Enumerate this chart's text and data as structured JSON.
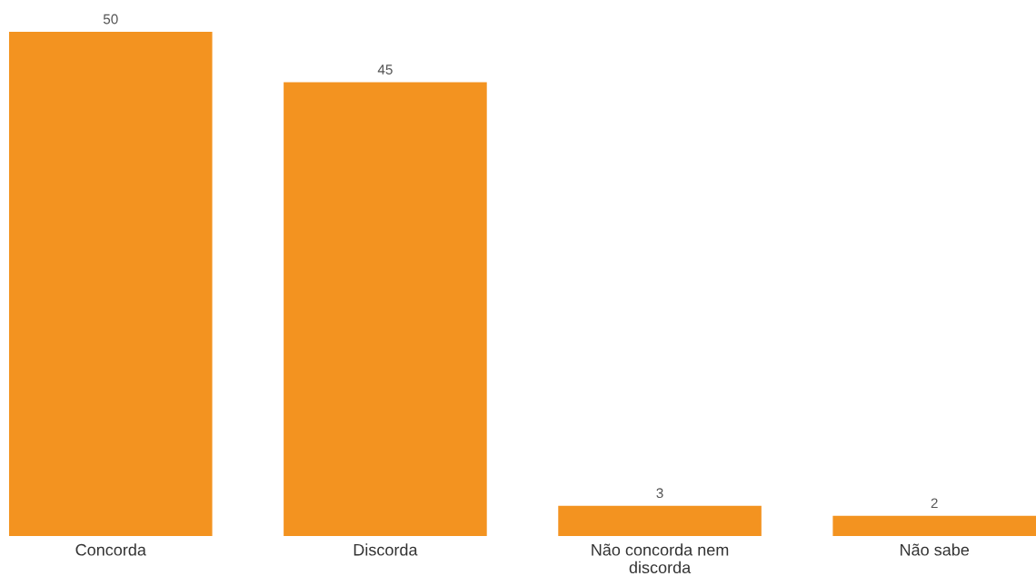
{
  "chart_data": {
    "type": "bar",
    "categories": [
      "Concorda",
      "Discorda",
      "Não concorda nem\ndiscorda",
      "Não sabe"
    ],
    "values": [
      50,
      45,
      3,
      2
    ],
    "color": "#f39320",
    "data_labels": true,
    "grid": false,
    "legend": false,
    "tick_labels": "x"
  }
}
